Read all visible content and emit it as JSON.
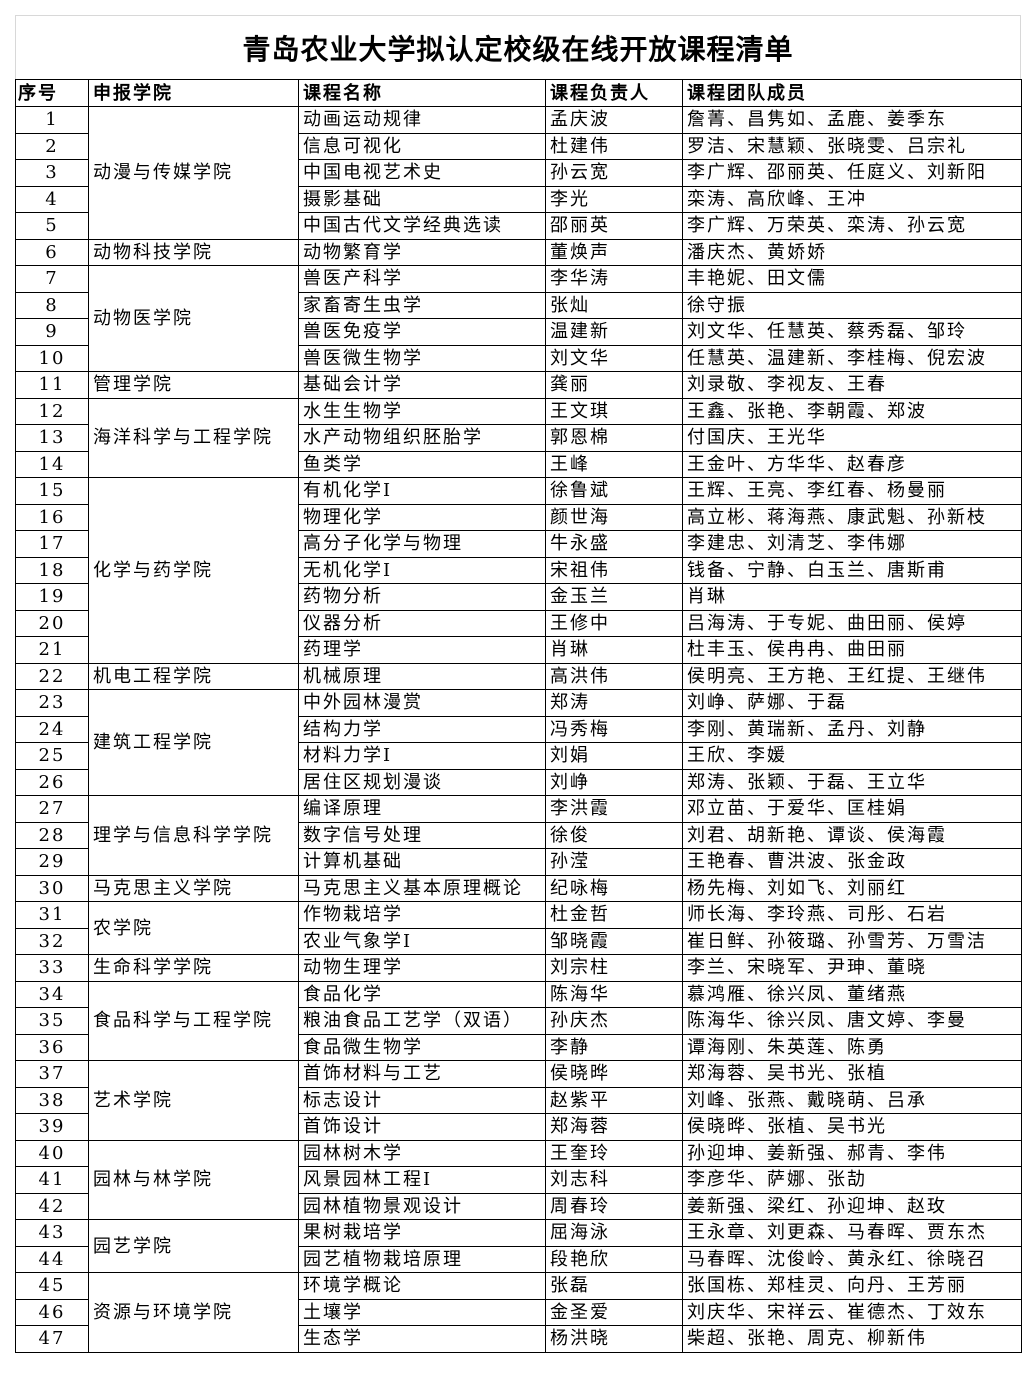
{
  "title": "青岛农业大学拟认定校级在线开放课程清单",
  "headers": {
    "no": "序号",
    "college": "申报学院",
    "course": "课程名称",
    "leader": "课程负责人",
    "team": "课程团队成员"
  },
  "colleges": [
    {
      "name": "动漫与传媒学院",
      "courses": [
        {
          "no": "1",
          "course": "动画运动规律",
          "leader": "孟庆波",
          "team": "詹菁、昌隽如、孟鹿、姜季东"
        },
        {
          "no": "2",
          "course": "信息可视化",
          "leader": "杜建伟",
          "team": "罗洁、宋慧颖、张晓雯、吕宗礼"
        },
        {
          "no": "3",
          "course": "中国电视艺术史",
          "leader": "孙云宽",
          "team": "李广辉、邵丽英、任庭义、刘新阳"
        },
        {
          "no": "4",
          "course": "摄影基础",
          "leader": "李光",
          "team": "栾涛、高欣峰、王冲"
        },
        {
          "no": "5",
          "course": "中国古代文学经典选读",
          "leader": "邵丽英",
          "team": "李广辉、万荣英、栾涛、孙云宽"
        }
      ]
    },
    {
      "name": "动物科技学院",
      "courses": [
        {
          "no": "6",
          "course": "动物繁育学",
          "leader": "董焕声",
          "team": "潘庆杰、黄娇娇"
        }
      ]
    },
    {
      "name": "动物医学院",
      "courses": [
        {
          "no": "7",
          "course": "兽医产科学",
          "leader": "李华涛",
          "team": "丰艳妮、田文儒"
        },
        {
          "no": "8",
          "course": "家畜寄生虫学",
          "leader": "张灿",
          "team": "徐守振"
        },
        {
          "no": "9",
          "course": "兽医免疫学",
          "leader": "温建新",
          "team": "刘文华、任慧英、蔡秀磊、邹玲"
        },
        {
          "no": "10",
          "course": "兽医微生物学",
          "leader": "刘文华",
          "team": "任慧英、温建新、李桂梅、倪宏波"
        }
      ]
    },
    {
      "name": "管理学院",
      "courses": [
        {
          "no": "11",
          "course": "基础会计学",
          "leader": "龚丽",
          "team": "刘录敬、李视友、王春"
        }
      ]
    },
    {
      "name": "海洋科学与工程学院",
      "courses": [
        {
          "no": "12",
          "course": "水生生物学",
          "leader": "王文琪",
          "team": "王鑫、张艳、李朝霞、郑波"
        },
        {
          "no": "13",
          "course": "水产动物组织胚胎学",
          "leader": "郭恩棉",
          "team": "付国庆、王光华"
        },
        {
          "no": "14",
          "course": "鱼类学",
          "leader": "王峰",
          "team": "王金叶、方华华、赵春彦"
        }
      ]
    },
    {
      "name": "化学与药学院",
      "courses": [
        {
          "no": "15",
          "course": "有机化学Ⅰ",
          "leader": "徐鲁斌",
          "team": "王辉、王亮、李红春、杨曼丽"
        },
        {
          "no": "16",
          "course": "物理化学",
          "leader": "颜世海",
          "team": "高立彬、蒋海燕、康武魁、孙新枝"
        },
        {
          "no": "17",
          "course": "高分子化学与物理",
          "leader": "牛永盛",
          "team": "李建忠、刘清芝、李伟娜"
        },
        {
          "no": "18",
          "course": "无机化学Ⅰ",
          "leader": "宋祖伟",
          "team": "钱备、宁静、白玉兰、唐斯甫"
        },
        {
          "no": "19",
          "course": "药物分析",
          "leader": "金玉兰",
          "team": "肖琳"
        },
        {
          "no": "20",
          "course": "仪器分析",
          "leader": "王修中",
          "team": "吕海涛、于专妮、曲田丽、侯婷"
        },
        {
          "no": "21",
          "course": "药理学",
          "leader": "肖琳",
          "team": "杜丰玉、侯冉冉、曲田丽"
        }
      ]
    },
    {
      "name": "机电工程学院",
      "courses": [
        {
          "no": "22",
          "course": "机械原理",
          "leader": "高洪伟",
          "team": "侯明亮、王方艳、王红提、王继伟"
        }
      ]
    },
    {
      "name": "建筑工程学院",
      "courses": [
        {
          "no": "23",
          "course": "中外园林漫赏",
          "leader": "郑涛",
          "team": "刘峥、萨娜、于磊"
        },
        {
          "no": "24",
          "course": "结构力学",
          "leader": "冯秀梅",
          "team": "李刚、黄瑞新、孟丹、刘静"
        },
        {
          "no": "25",
          "course": "材料力学Ⅰ",
          "leader": "刘娟",
          "team": "王欣、李媛"
        },
        {
          "no": "26",
          "course": "居住区规划漫谈",
          "leader": "刘峥",
          "team": "郑涛、张颖、于磊、王立华"
        }
      ]
    },
    {
      "name": "理学与信息科学学院",
      "courses": [
        {
          "no": "27",
          "course": "编译原理",
          "leader": "李洪霞",
          "team": "邓立苗、于爱华、匡桂娟"
        },
        {
          "no": "28",
          "course": "数字信号处理",
          "leader": "徐俊",
          "team": "刘君、胡新艳、谭谈、侯海霞"
        },
        {
          "no": "29",
          "course": "计算机基础",
          "leader": "孙滢",
          "team": "王艳春、曹洪波、张金政"
        }
      ]
    },
    {
      "name": "马克思主义学院",
      "courses": [
        {
          "no": "30",
          "course": "马克思主义基本原理概论",
          "leader": "纪咏梅",
          "team": "杨先梅、刘如飞、刘丽红"
        }
      ]
    },
    {
      "name": "农学院",
      "courses": [
        {
          "no": "31",
          "course": "作物栽培学",
          "leader": "杜金哲",
          "team": "师长海、李玲燕、司彤、石岩"
        },
        {
          "no": "32",
          "course": "农业气象学Ⅰ",
          "leader": "邹晓霞",
          "team": "崔日鲜、孙筱璐、孙雪芳、万雪洁"
        }
      ]
    },
    {
      "name": "生命科学学院",
      "courses": [
        {
          "no": "33",
          "course": "动物生理学",
          "leader": "刘宗柱",
          "team": "李兰、宋晓军、尹珅、董晓"
        }
      ]
    },
    {
      "name": "食品科学与工程学院",
      "courses": [
        {
          "no": "34",
          "course": "食品化学",
          "leader": "陈海华",
          "team": "慕鸿雁、徐兴凤、董绪燕"
        },
        {
          "no": "35",
          "course": "粮油食品工艺学（双语）",
          "leader": "孙庆杰",
          "team": "陈海华、徐兴凤、唐文婷、李曼"
        },
        {
          "no": "36",
          "course": "食品微生物学",
          "leader": "李静",
          "team": "谭海刚、朱英莲、陈勇"
        }
      ]
    },
    {
      "name": "艺术学院",
      "courses": [
        {
          "no": "37",
          "course": "首饰材料与工艺",
          "leader": "侯晓晔",
          "team": "郑海蓉、吴书光、张植"
        },
        {
          "no": "38",
          "course": "标志设计",
          "leader": "赵紫平",
          "team": "刘峰、张燕、戴晓萌、吕承"
        },
        {
          "no": "39",
          "course": "首饰设计",
          "leader": "郑海蓉",
          "team": "侯晓晔、张植、吴书光"
        }
      ]
    },
    {
      "name": "园林与林学院",
      "courses": [
        {
          "no": "40",
          "course": "园林树木学",
          "leader": "王奎玲",
          "team": "孙迎坤、姜新强、郝青、李伟"
        },
        {
          "no": "41",
          "course": "风景园林工程Ⅰ",
          "leader": "刘志科",
          "team": "李彦华、萨娜、张劼"
        },
        {
          "no": "42",
          "course": "园林植物景观设计",
          "leader": "周春玲",
          "team": "姜新强、梁红、孙迎坤、赵玫"
        }
      ]
    },
    {
      "name": "园艺学院",
      "courses": [
        {
          "no": "43",
          "course": "果树栽培学",
          "leader": "屈海泳",
          "team": "王永章、刘更森、马春晖、贾东杰"
        },
        {
          "no": "44",
          "course": "园艺植物栽培原理",
          "leader": "段艳欣",
          "team": "马春晖、沈俊岭、黄永红、徐晓召"
        }
      ]
    },
    {
      "name": "资源与环境学院",
      "courses": [
        {
          "no": "45",
          "course": "环境学概论",
          "leader": "张磊",
          "team": "张国栋、郑桂灵、向丹、王芳丽"
        },
        {
          "no": "46",
          "course": "土壤学",
          "leader": "金圣爱",
          "team": "刘庆华、宋祥云、崔德杰、丁效东"
        },
        {
          "no": "47",
          "course": "生态学",
          "leader": "杨洪晓",
          "team": "柴超、张艳、周克、柳新伟"
        }
      ]
    }
  ]
}
